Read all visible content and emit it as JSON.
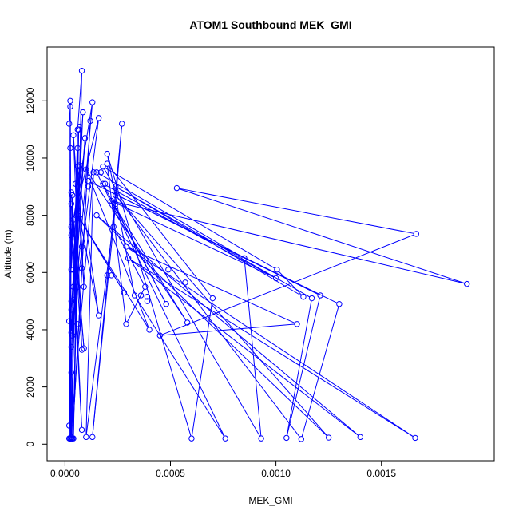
{
  "chart_data": {
    "type": "line",
    "title": "ATOM1 Southbound MEK_GMI",
    "xlabel": "MEK_GMI",
    "ylabel": "Altitude (m)",
    "xlim": [
      0,
      0.00195
    ],
    "ylim": [
      0,
      13300
    ],
    "x_ticks": [
      {
        "value": 0.0,
        "label": "0.0000"
      },
      {
        "value": 0.0005,
        "label": "0.0005"
      },
      {
        "value": 0.001,
        "label": "0.0010"
      },
      {
        "value": 0.0015,
        "label": "0.0015"
      }
    ],
    "y_ticks": [
      {
        "value": 0,
        "label": "0"
      },
      {
        "value": 2000,
        "label": "2000"
      },
      {
        "value": 4000,
        "label": "4000"
      },
      {
        "value": 6000,
        "label": "6000"
      },
      {
        "value": 8000,
        "label": "8000"
      },
      {
        "value": 10000,
        "label": "10000"
      },
      {
        "value": 12000,
        "label": "12000"
      }
    ],
    "color": "#0000ff",
    "series": [
      {
        "points": [
          [
            2.5e-05,
            200
          ],
          [
            2e-05,
            11200
          ],
          [
            2.5e-05,
            11800
          ],
          [
            3e-05,
            200
          ],
          [
            2.5e-05,
            12000
          ],
          [
            2.5e-05,
            10350
          ],
          [
            3e-05,
            6100
          ],
          [
            3.5e-05,
            8700
          ],
          [
            4e-05,
            5500
          ],
          [
            6e-05,
            11000
          ],
          [
            8e-05,
            13050
          ],
          [
            4e-05,
            200
          ],
          [
            6.5e-05,
            11000
          ],
          [
            3e-05,
            250
          ],
          [
            6e-05,
            10350
          ],
          [
            4.5e-05,
            5050
          ],
          [
            8.5e-05,
            11600
          ],
          [
            3e-05,
            4700
          ],
          [
            9.5e-05,
            10700
          ],
          [
            3.5e-05,
            3800
          ],
          [
            0.00013,
            11950
          ],
          [
            4e-05,
            7850
          ],
          [
            0.00016,
            11400
          ],
          [
            3e-05,
            3900
          ],
          [
            7e-05,
            9750
          ],
          [
            2.5e-05,
            200
          ],
          [
            0.000135,
            9500
          ],
          [
            0.0001,
            250
          ],
          [
            0.00024,
            8400
          ],
          [
            0.00013,
            250
          ],
          [
            0.00027,
            11200
          ],
          [
            0.00023,
            7600
          ],
          [
            0.00038,
            5500
          ],
          [
            0.00029,
            4200
          ],
          [
            0.0002,
            9800
          ],
          [
            0.0007,
            5100
          ],
          [
            0.0006,
            200
          ],
          [
            0.0002,
            10150
          ],
          [
            0.00033,
            5200
          ],
          [
            0.00076,
            200
          ],
          [
            0.00015,
            9500
          ],
          [
            0.00085,
            6500
          ],
          [
            0.00093,
            200
          ],
          [
            0.00018,
            9700
          ],
          [
            0.001005,
            6100
          ],
          [
            0.00113,
            5150
          ],
          [
            0.00024,
            9000
          ],
          [
            0.00117,
            5100
          ],
          [
            0.00105,
            220
          ],
          [
            0.00121,
            5200
          ],
          [
            0.00011,
            9200
          ],
          [
            0.0013,
            4900
          ],
          [
            0.00112,
            180
          ],
          [
            0.00024,
            8700
          ],
          [
            0.00125,
            230
          ],
          [
            0.00015,
            8000
          ],
          [
            0.0014,
            250
          ],
          [
            0.0003,
            6500
          ],
          [
            0.00166,
            220
          ],
          [
            0.00029,
            6900
          ],
          [
            0.0011,
            4200
          ],
          [
            0.00045,
            3800
          ],
          [
            0.001665,
            7350
          ],
          [
            0.00053,
            8950
          ],
          [
            0.001905,
            5600
          ],
          [
            0.00022,
            8500
          ],
          [
            0.001,
            5800
          ],
          [
            0.00018,
            9100
          ],
          [
            0.00048,
            4900
          ],
          [
            0.00022,
            8500
          ],
          [
            0.00058,
            4250
          ],
          [
            0.0001,
            9600
          ],
          [
            0.0004,
            4000
          ],
          [
            6e-05,
            8000
          ],
          [
            0.00028,
            5300
          ],
          [
            7e-05,
            7900
          ],
          [
            0.00016,
            4500
          ],
          [
            6e-05,
            9700
          ],
          [
            9e-05,
            5500
          ],
          [
            4e-05,
            10800
          ],
          [
            8e-05,
            3300
          ],
          [
            3e-05,
            8800
          ],
          [
            9e-05,
            3350
          ],
          [
            3e-05,
            8400
          ],
          [
            8e-05,
            500
          ],
          [
            3e-05,
            7300
          ],
          [
            6e-05,
            5500
          ],
          [
            3e-05,
            7600
          ],
          [
            2e-05,
            200
          ],
          [
            3e-05,
            5000
          ],
          [
            2.5e-05,
            200
          ],
          [
            4e-05,
            6100
          ],
          [
            3.5e-05,
            200
          ],
          [
            0.00012,
            11300
          ],
          [
            3.5e-05,
            200
          ]
        ]
      }
    ],
    "extra_points": [
      [
        2e-05,
        650
      ],
      [
        7e-05,
        11100
      ],
      [
        5e-05,
        9100
      ],
      [
        6e-05,
        4200
      ],
      [
        2e-05,
        4300
      ],
      [
        3e-05,
        3400
      ],
      [
        3e-05,
        2500
      ],
      [
        8e-05,
        6900
      ],
      [
        8e-05,
        6150
      ],
      [
        0.00039,
        5150
      ],
      [
        0.00036,
        5200
      ],
      [
        0.00022,
        5900
      ],
      [
        0.0002,
        5900
      ],
      [
        0.00049,
        6100
      ],
      [
        0.00057,
        5650
      ],
      [
        0.00039,
        5000
      ],
      [
        0.00011,
        9000
      ],
      [
        0.00019,
        9100
      ],
      [
        0.00017,
        9500
      ]
    ]
  }
}
